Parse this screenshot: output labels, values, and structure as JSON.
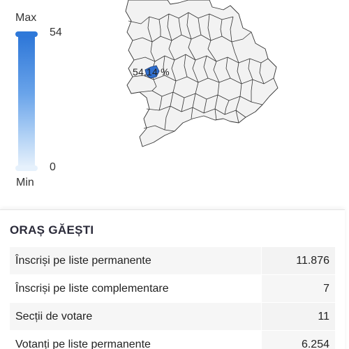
{
  "legend": {
    "max_label": "Max",
    "min_label": "Min",
    "max_value": "54",
    "min_value": "0",
    "color_high": "#2e77d8",
    "color_low": "#e3effb"
  },
  "map": {
    "highlight_label": "54,14 %",
    "highlight_color": "#2f6fd0",
    "region_fill": "#f2f2f2",
    "region_stroke": "#333333"
  },
  "details": {
    "title": "ORAȘ GĂEȘTI",
    "rows": [
      {
        "label": "Înscriși pe liste permanente",
        "value": "11.876"
      },
      {
        "label": "Înscriși pe liste complementare",
        "value": "7"
      },
      {
        "label": "Secții de votare",
        "value": "11"
      },
      {
        "label": "Votanți pe liste permanente",
        "value": "6.254"
      }
    ]
  }
}
